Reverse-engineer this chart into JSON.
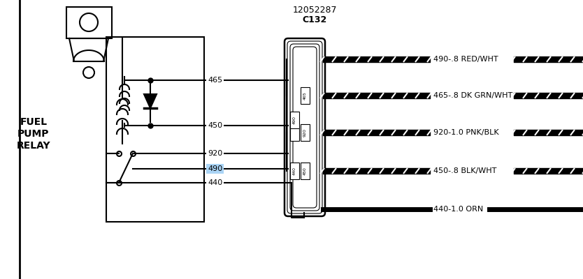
{
  "bg_color": "#ffffff",
  "line_color": "#000000",
  "fig_width": 8.34,
  "fig_height": 4.0,
  "dpi": 100,
  "connector_label": "12052287",
  "connector_sub": "C132",
  "wire_labels": [
    "490-.8 RED/WHT",
    "465-.8 DK GRN/WHT",
    "920-1.0 PNK/BLK",
    "450-.8 BLK/WHT",
    "440-1.0 ORN"
  ],
  "wire_dashed": [
    true,
    true,
    true,
    true,
    false
  ],
  "pin_labels": [
    "465",
    "450",
    "920",
    "490",
    "440"
  ],
  "highlight_pin": "490",
  "highlight_color": "#aad4f5"
}
